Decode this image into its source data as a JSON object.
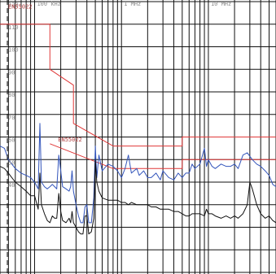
{
  "chart_data": {
    "type": "line",
    "x_scale": "log",
    "xlim_hz": [
      40000,
      60000000
    ],
    "y_scale": "linear",
    "ylim_dbuv": [
      0,
      120
    ],
    "y_grid_step": 10,
    "grid": true,
    "x_tick_labels": [
      {
        "hz": 100000,
        "label": "100 kHz"
      },
      {
        "hz": 1000000,
        "label": "1 MHz"
      },
      {
        "hz": 10000000,
        "label": "10 MHz"
      }
    ],
    "y_tick_labels": [
      {
        "value": 120,
        "label": "120"
      },
      {
        "value": 110,
        "label": "110"
      },
      {
        "value": 100,
        "label": "100"
      },
      {
        "value": 90,
        "label": "90"
      },
      {
        "value": 80,
        "label": "80"
      },
      {
        "value": 70,
        "label": "70"
      },
      {
        "value": 60,
        "label": "60"
      },
      {
        "value": 50,
        "label": "50"
      },
      {
        "value": 40,
        "label": "40"
      }
    ],
    "annotations": [
      {
        "text": "EN55022",
        "hz": 40000,
        "value": 117
      },
      {
        "text": "EN55022",
        "hz": 150000,
        "value": 58
      }
    ],
    "colors": {
      "limit": "#e03838",
      "peak": "#3355bb",
      "average": "#111111",
      "grid": "#111111"
    },
    "series": [
      {
        "key": "limit_upper",
        "color": "#e03838",
        "points": [
          [
            40000,
            110
          ],
          [
            150000,
            110
          ],
          [
            150000,
            90
          ],
          [
            280000,
            83
          ],
          [
            280000,
            66
          ],
          [
            800000,
            56
          ],
          [
            5000000,
            56
          ],
          [
            5000000,
            60
          ],
          [
            60000000,
            60
          ]
        ]
      },
      {
        "key": "limit_lower",
        "color": "#e03838",
        "points": [
          [
            150000,
            57
          ],
          [
            800000,
            46
          ],
          [
            5000000,
            46
          ],
          [
            5000000,
            50
          ],
          [
            60000000,
            50
          ]
        ]
      },
      {
        "key": "peak",
        "color": "#3355bb",
        "points": [
          [
            40000,
            56
          ],
          [
            45000,
            55
          ],
          [
            50000,
            50
          ],
          [
            60000,
            46
          ],
          [
            70000,
            44
          ],
          [
            80000,
            43
          ],
          [
            90000,
            42
          ],
          [
            100000,
            40
          ],
          [
            110000,
            37
          ],
          [
            115000,
            66
          ],
          [
            120000,
            40
          ],
          [
            130000,
            38
          ],
          [
            140000,
            37
          ],
          [
            150000,
            38
          ],
          [
            160000,
            39
          ],
          [
            170000,
            38
          ],
          [
            180000,
            37
          ],
          [
            190000,
            52
          ],
          [
            200000,
            45
          ],
          [
            210000,
            38
          ],
          [
            230000,
            37
          ],
          [
            250000,
            36
          ],
          [
            260000,
            38
          ],
          [
            270000,
            45
          ],
          [
            280000,
            36
          ],
          [
            300000,
            30
          ],
          [
            320000,
            25
          ],
          [
            340000,
            22
          ],
          [
            360000,
            22
          ],
          [
            380000,
            29
          ],
          [
            400000,
            30
          ],
          [
            420000,
            22
          ],
          [
            450000,
            22
          ],
          [
            480000,
            33
          ],
          [
            500000,
            56
          ],
          [
            520000,
            42
          ],
          [
            550000,
            52
          ],
          [
            600000,
            45
          ],
          [
            700000,
            48
          ],
          [
            800000,
            47
          ],
          [
            900000,
            45
          ],
          [
            1000000,
            42
          ],
          [
            1100000,
            46
          ],
          [
            1200000,
            52
          ],
          [
            1300000,
            44
          ],
          [
            1500000,
            46
          ],
          [
            1600000,
            43
          ],
          [
            1800000,
            45
          ],
          [
            2000000,
            42
          ],
          [
            2200000,
            42
          ],
          [
            2500000,
            44
          ],
          [
            2800000,
            41
          ],
          [
            3000000,
            45
          ],
          [
            3500000,
            42
          ],
          [
            4000000,
            41
          ],
          [
            4500000,
            44
          ],
          [
            5000000,
            42
          ],
          [
            5500000,
            44
          ],
          [
            6000000,
            44
          ],
          [
            6500000,
            48
          ],
          [
            7000000,
            46
          ],
          [
            8000000,
            48
          ],
          [
            9000000,
            55
          ],
          [
            9500000,
            47
          ],
          [
            10000000,
            50
          ],
          [
            11000000,
            47
          ],
          [
            12000000,
            46
          ],
          [
            14000000,
            48
          ],
          [
            16000000,
            47
          ],
          [
            18000000,
            47
          ],
          [
            20000000,
            48
          ],
          [
            22000000,
            46
          ],
          [
            25000000,
            52
          ],
          [
            28000000,
            53
          ],
          [
            32000000,
            50
          ],
          [
            36000000,
            48
          ],
          [
            40000000,
            47
          ],
          [
            45000000,
            45
          ],
          [
            50000000,
            43
          ],
          [
            55000000,
            39
          ],
          [
            60000000,
            38
          ]
        ]
      },
      {
        "key": "average",
        "color": "#111111",
        "points": [
          [
            40000,
            47
          ],
          [
            45000,
            46
          ],
          [
            50000,
            44
          ],
          [
            60000,
            40
          ],
          [
            70000,
            38
          ],
          [
            80000,
            36
          ],
          [
            90000,
            34
          ],
          [
            100000,
            34
          ],
          [
            110000,
            28
          ],
          [
            115000,
            44
          ],
          [
            120000,
            30
          ],
          [
            130000,
            26
          ],
          [
            140000,
            23
          ],
          [
            150000,
            22
          ],
          [
            160000,
            25
          ],
          [
            170000,
            24
          ],
          [
            180000,
            24
          ],
          [
            190000,
            35
          ],
          [
            200000,
            27
          ],
          [
            210000,
            23
          ],
          [
            230000,
            22
          ],
          [
            250000,
            24
          ],
          [
            260000,
            22
          ],
          [
            270000,
            27
          ],
          [
            280000,
            22
          ],
          [
            300000,
            20
          ],
          [
            320000,
            18
          ],
          [
            340000,
            17
          ],
          [
            360000,
            17
          ],
          [
            380000,
            25
          ],
          [
            400000,
            25
          ],
          [
            420000,
            17
          ],
          [
            450000,
            18
          ],
          [
            480000,
            24
          ],
          [
            500000,
            50
          ],
          [
            520000,
            40
          ],
          [
            550000,
            36
          ],
          [
            600000,
            33
          ],
          [
            700000,
            32
          ],
          [
            800000,
            32
          ],
          [
            900000,
            32
          ],
          [
            1000000,
            31
          ],
          [
            1100000,
            31
          ],
          [
            1200000,
            30
          ],
          [
            1300000,
            31
          ],
          [
            1500000,
            30
          ],
          [
            1600000,
            30
          ],
          [
            1800000,
            30
          ],
          [
            2000000,
            30
          ],
          [
            2200000,
            29
          ],
          [
            2500000,
            29
          ],
          [
            2800000,
            28
          ],
          [
            3000000,
            28
          ],
          [
            3500000,
            28
          ],
          [
            4000000,
            27
          ],
          [
            4500000,
            27
          ],
          [
            5000000,
            26
          ],
          [
            5500000,
            25
          ],
          [
            6000000,
            25
          ],
          [
            6500000,
            26
          ],
          [
            7000000,
            26
          ],
          [
            8000000,
            26
          ],
          [
            9000000,
            25
          ],
          [
            9500000,
            28
          ],
          [
            10000000,
            26
          ],
          [
            11000000,
            26
          ],
          [
            12000000,
            25
          ],
          [
            14000000,
            24
          ],
          [
            16000000,
            25
          ],
          [
            18000000,
            24
          ],
          [
            20000000,
            25
          ],
          [
            22000000,
            24
          ],
          [
            25000000,
            26
          ],
          [
            28000000,
            30
          ],
          [
            30000000,
            40
          ],
          [
            32000000,
            37
          ],
          [
            36000000,
            30
          ],
          [
            40000000,
            26
          ],
          [
            45000000,
            24
          ],
          [
            50000000,
            25
          ],
          [
            55000000,
            23
          ],
          [
            60000000,
            22
          ]
        ]
      }
    ]
  }
}
